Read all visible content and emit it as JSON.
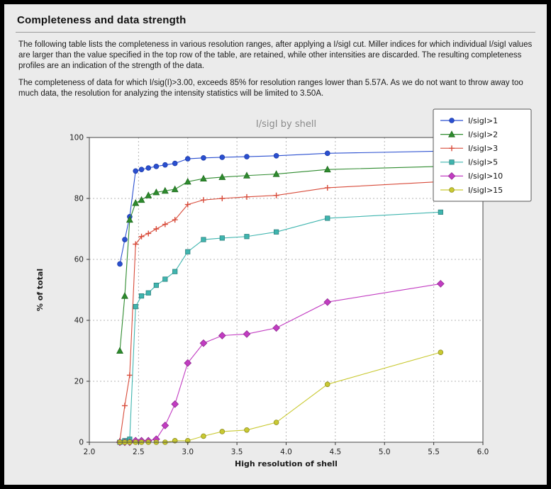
{
  "page": {
    "title": "Completeness and data strength",
    "paragraphs": [
      "The following table lists the completeness in various resolution ranges, after applying a I/sigI cut. Miller indices for which individual I/sigI values are larger than the value specified in the top row of the table, are retained, while other intensities are discarded. The resulting completeness profiles are an indication of the strength of the data.",
      "The completeness of data for which I/sig(I)>3.00, exceeds  85% for resolution ranges lower than 5.57A. As we do not want to throw away too much data, the resolution for analyzing the intensity statistics will be limited to 3.50A."
    ]
  },
  "chart_data": {
    "type": "line",
    "title": "I/sigI by shell",
    "xlabel": "High resolution of shell",
    "ylabel": "% of total",
    "xlim": [
      2.0,
      6.0
    ],
    "ylim": [
      0,
      100
    ],
    "xticks": [
      2.0,
      2.5,
      3.0,
      3.5,
      4.0,
      4.5,
      5.0,
      5.5,
      6.0
    ],
    "xtick_labels": [
      "2.0",
      "2.5",
      "3.0",
      "3.5",
      "4.0",
      "4.5",
      "5.0",
      "5.5",
      "6.0"
    ],
    "yticks": [
      0,
      20,
      40,
      60,
      80,
      100
    ],
    "ytick_labels": [
      "0",
      "20",
      "40",
      "60",
      "80",
      "100"
    ],
    "grid": true,
    "legend_position": "upper right",
    "x": [
      2.31,
      2.36,
      2.41,
      2.47,
      2.53,
      2.6,
      2.68,
      2.77,
      2.87,
      3.0,
      3.16,
      3.35,
      3.6,
      3.9,
      4.42,
      5.57
    ],
    "series": [
      {
        "name": "I/sigI>1",
        "marker": "circle",
        "color": "#2a4fd0",
        "edge": "#1c3ba8",
        "values": [
          58.5,
          66.5,
          74.0,
          89.0,
          89.5,
          90.0,
          90.5,
          91.0,
          91.5,
          93.0,
          93.3,
          93.5,
          93.7,
          94.0,
          94.8,
          95.5
        ]
      },
      {
        "name": "I/sigI>2",
        "marker": "triangle",
        "color": "#2e8b2e",
        "edge": "#1f6b1f",
        "values": [
          30.0,
          48.0,
          73.0,
          78.5,
          79.5,
          81.0,
          82.0,
          82.5,
          83.0,
          85.5,
          86.5,
          87.0,
          87.5,
          88.0,
          89.5,
          90.5
        ]
      },
      {
        "name": "I/sigI>3",
        "marker": "plus",
        "color": "#d84b3a",
        "edge": "#b03830",
        "values": [
          0.5,
          12.0,
          22.0,
          65.0,
          67.5,
          68.5,
          70.0,
          71.5,
          73.0,
          78.0,
          79.5,
          80.0,
          80.5,
          81.0,
          83.5,
          85.5
        ]
      },
      {
        "name": "I/sigI>5",
        "marker": "square",
        "color": "#3fb5af",
        "edge": "#2a807c",
        "values": [
          0.0,
          0.5,
          1.0,
          44.5,
          48.0,
          49.0,
          51.5,
          53.5,
          56.0,
          62.5,
          66.5,
          67.0,
          67.5,
          69.0,
          73.5,
          75.5
        ]
      },
      {
        "name": "I/sigI>10",
        "marker": "diamond",
        "color": "#c23cc2",
        "edge": "#8f2a8f",
        "values": [
          0.0,
          0.0,
          0.0,
          0.5,
          0.5,
          0.5,
          1.0,
          5.5,
          12.5,
          26.0,
          32.5,
          35.0,
          35.5,
          37.5,
          46.0,
          52.0
        ]
      },
      {
        "name": "I/sigI>15",
        "marker": "circle",
        "color": "#c9c931",
        "edge": "#8f8f1f",
        "values": [
          0.0,
          0.0,
          0.0,
          0.0,
          0.0,
          0.0,
          0.0,
          0.0,
          0.5,
          0.5,
          2.0,
          3.5,
          4.0,
          6.5,
          19.0,
          29.5
        ]
      }
    ],
    "colors": {
      "page_background": "#ebebeb",
      "plot_background": "#ffffff",
      "grid": "#b5b5b5",
      "axis": "#444444",
      "title_text": "#8a8a8a"
    }
  }
}
